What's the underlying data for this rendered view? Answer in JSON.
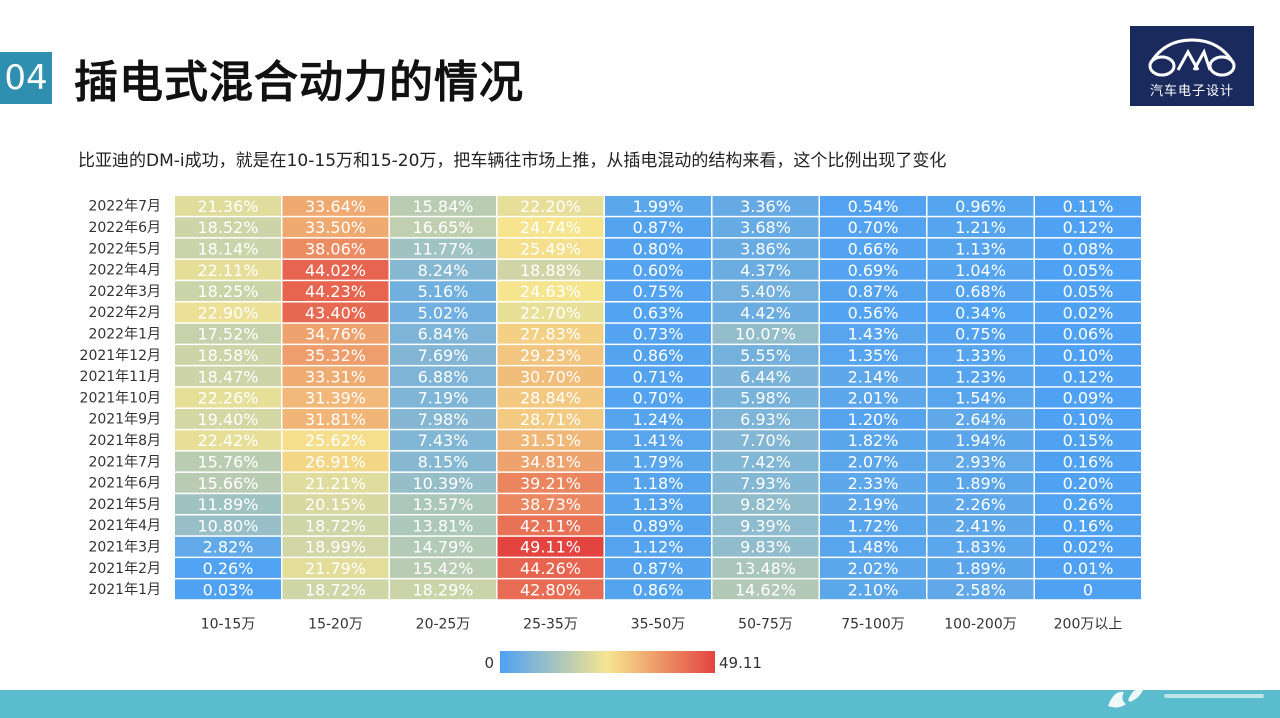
{
  "header": {
    "section_number": "04",
    "title": "插电式混合动力的情况",
    "subtitle": "比亚迪的DM-i成功，就是在10-15万和15-20万，把车辆往市场上推，从插电混动的结构来看，这个比例出现了变化",
    "logo_text": "汽车电子设计"
  },
  "colors": {
    "section_badge": "#2f8fb0",
    "logo_bg": "#1a2a5c",
    "footer_bar": "#5bbccd",
    "scale_low": "#4ea1f3",
    "scale_mid": "#f6e58f",
    "scale_high": "#e3443f"
  },
  "chart_data": {
    "type": "heatmap",
    "rows": [
      "2022年7月",
      "2022年6月",
      "2022年5月",
      "2022年4月",
      "2022年3月",
      "2022年2月",
      "2022年1月",
      "2021年12月",
      "2021年11月",
      "2021年10月",
      "2021年9月",
      "2021年8月",
      "2021年7月",
      "2021年6月",
      "2021年5月",
      "2021年4月",
      "2021年3月",
      "2021年2月",
      "2021年1月"
    ],
    "columns": [
      "10-15万",
      "15-20万",
      "20-25万",
      "25-35万",
      "35-50万",
      "50-75万",
      "75-100万",
      "100-200万",
      "200万以上"
    ],
    "values": [
      [
        21.36,
        33.64,
        15.84,
        22.2,
        1.99,
        3.36,
        0.54,
        0.96,
        0.11
      ],
      [
        18.52,
        33.5,
        16.65,
        24.74,
        0.87,
        3.68,
        0.7,
        1.21,
        0.12
      ],
      [
        18.14,
        38.06,
        11.77,
        25.49,
        0.8,
        3.86,
        0.66,
        1.13,
        0.08
      ],
      [
        22.11,
        44.02,
        8.24,
        18.88,
        0.6,
        4.37,
        0.69,
        1.04,
        0.05
      ],
      [
        18.25,
        44.23,
        5.16,
        24.63,
        0.75,
        5.4,
        0.87,
        0.68,
        0.05
      ],
      [
        22.9,
        43.4,
        5.02,
        22.7,
        0.63,
        4.42,
        0.56,
        0.34,
        0.02
      ],
      [
        17.52,
        34.76,
        6.84,
        27.83,
        0.73,
        10.07,
        1.43,
        0.75,
        0.06
      ],
      [
        18.58,
        35.32,
        7.69,
        29.23,
        0.86,
        5.55,
        1.35,
        1.33,
        0.1
      ],
      [
        18.47,
        33.31,
        6.88,
        30.7,
        0.71,
        6.44,
        2.14,
        1.23,
        0.12
      ],
      [
        22.26,
        31.39,
        7.19,
        28.84,
        0.7,
        5.98,
        2.01,
        1.54,
        0.09
      ],
      [
        19.4,
        31.81,
        7.98,
        28.71,
        1.24,
        6.93,
        1.2,
        2.64,
        0.1
      ],
      [
        22.42,
        25.62,
        7.43,
        31.51,
        1.41,
        7.7,
        1.82,
        1.94,
        0.15
      ],
      [
        15.76,
        26.91,
        8.15,
        34.81,
        1.79,
        7.42,
        2.07,
        2.93,
        0.16
      ],
      [
        15.66,
        21.21,
        10.39,
        39.21,
        1.18,
        7.93,
        2.33,
        1.89,
        0.2
      ],
      [
        11.89,
        20.15,
        13.57,
        38.73,
        1.13,
        9.82,
        2.19,
        2.26,
        0.26
      ],
      [
        10.8,
        18.72,
        13.81,
        42.11,
        0.89,
        9.39,
        1.72,
        2.41,
        0.16
      ],
      [
        2.82,
        18.99,
        14.79,
        49.11,
        1.12,
        9.83,
        1.48,
        1.83,
        0.02
      ],
      [
        0.26,
        21.79,
        15.42,
        44.26,
        0.87,
        13.48,
        2.02,
        1.89,
        0.01
      ],
      [
        0.03,
        18.72,
        18.29,
        42.8,
        0.86,
        14.62,
        2.1,
        2.58,
        0
      ]
    ],
    "cell_labels": [
      [
        "21.36%",
        "33.64%",
        "15.84%",
        "22.20%",
        "1.99%",
        "3.36%",
        "0.54%",
        "0.96%",
        "0.11%"
      ],
      [
        "18.52%",
        "33.50%",
        "16.65%",
        "24.74%",
        "0.87%",
        "3.68%",
        "0.70%",
        "1.21%",
        "0.12%"
      ],
      [
        "18.14%",
        "38.06%",
        "11.77%",
        "25.49%",
        "0.80%",
        "3.86%",
        "0.66%",
        "1.13%",
        "0.08%"
      ],
      [
        "22.11%",
        "44.02%",
        "8.24%",
        "18.88%",
        "0.60%",
        "4.37%",
        "0.69%",
        "1.04%",
        "0.05%"
      ],
      [
        "18.25%",
        "44.23%",
        "5.16%",
        "24.63%",
        "0.75%",
        "5.40%",
        "0.87%",
        "0.68%",
        "0.05%"
      ],
      [
        "22.90%",
        "43.40%",
        "5.02%",
        "22.70%",
        "0.63%",
        "4.42%",
        "0.56%",
        "0.34%",
        "0.02%"
      ],
      [
        "17.52%",
        "34.76%",
        "6.84%",
        "27.83%",
        "0.73%",
        "10.07%",
        "1.43%",
        "0.75%",
        "0.06%"
      ],
      [
        "18.58%",
        "35.32%",
        "7.69%",
        "29.23%",
        "0.86%",
        "5.55%",
        "1.35%",
        "1.33%",
        "0.10%"
      ],
      [
        "18.47%",
        "33.31%",
        "6.88%",
        "30.70%",
        "0.71%",
        "6.44%",
        "2.14%",
        "1.23%",
        "0.12%"
      ],
      [
        "22.26%",
        "31.39%",
        "7.19%",
        "28.84%",
        "0.70%",
        "5.98%",
        "2.01%",
        "1.54%",
        "0.09%"
      ],
      [
        "19.40%",
        "31.81%",
        "7.98%",
        "28.71%",
        "1.24%",
        "6.93%",
        "1.20%",
        "2.64%",
        "0.10%"
      ],
      [
        "22.42%",
        "25.62%",
        "7.43%",
        "31.51%",
        "1.41%",
        "7.70%",
        "1.82%",
        "1.94%",
        "0.15%"
      ],
      [
        "15.76%",
        "26.91%",
        "8.15%",
        "34.81%",
        "1.79%",
        "7.42%",
        "2.07%",
        "2.93%",
        "0.16%"
      ],
      [
        "15.66%",
        "21.21%",
        "10.39%",
        "39.21%",
        "1.18%",
        "7.93%",
        "2.33%",
        "1.89%",
        "0.20%"
      ],
      [
        "11.89%",
        "20.15%",
        "13.57%",
        "38.73%",
        "1.13%",
        "9.82%",
        "2.19%",
        "2.26%",
        "0.26%"
      ],
      [
        "10.80%",
        "18.72%",
        "13.81%",
        "42.11%",
        "0.89%",
        "9.39%",
        "1.72%",
        "2.41%",
        "0.16%"
      ],
      [
        "2.82%",
        "18.99%",
        "14.79%",
        "49.11%",
        "1.12%",
        "9.83%",
        "1.48%",
        "1.83%",
        "0.02%"
      ],
      [
        "0.26%",
        "21.79%",
        "15.42%",
        "44.26%",
        "0.87%",
        "13.48%",
        "2.02%",
        "1.89%",
        "0.01%"
      ],
      [
        "0.03%",
        "18.72%",
        "18.29%",
        "42.80%",
        "0.86%",
        "14.62%",
        "2.10%",
        "2.58%",
        "0"
      ]
    ],
    "color_scale": {
      "min": 0,
      "max": 49.11,
      "min_label": "0",
      "max_label": "49.11"
    },
    "legend_position": "bottom-center"
  }
}
